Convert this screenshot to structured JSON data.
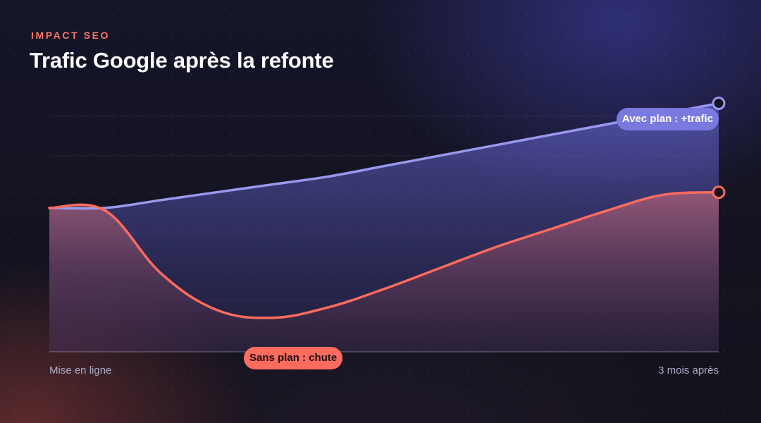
{
  "header": {
    "eyebrow": "IMPACT SEO",
    "title": "Trafic Google après la refonte"
  },
  "chart_data": {
    "type": "area",
    "title": "Trafic Google après la refonte",
    "xlabel": "",
    "ylabel": "",
    "x_tick_labels": [
      "Mise en ligne",
      "3 mois après"
    ],
    "x": [
      0,
      1,
      2,
      3,
      4,
      5,
      6,
      7,
      8,
      9,
      10,
      11,
      12
    ],
    "ylim": [
      0,
      100
    ],
    "grid": true,
    "series": [
      {
        "name": "Avec plan : +trafic",
        "color": "#9a98ee",
        "values": [
          55,
          55,
          58,
          61,
          64,
          67,
          71,
          75,
          79,
          83,
          87,
          91,
          95
        ]
      },
      {
        "name": "Sans plan : chute",
        "color": "#ff6b5e",
        "values": [
          55,
          54,
          30,
          16,
          13,
          17,
          24,
          32,
          40,
          47,
          54,
          60,
          61
        ]
      }
    ]
  },
  "colors": {
    "accent_avec": "#9a98ee",
    "accent_sans": "#ff6b5e",
    "label_avec_bg": "#7b78e0",
    "label_sans_bg": "#ff6b5e"
  }
}
